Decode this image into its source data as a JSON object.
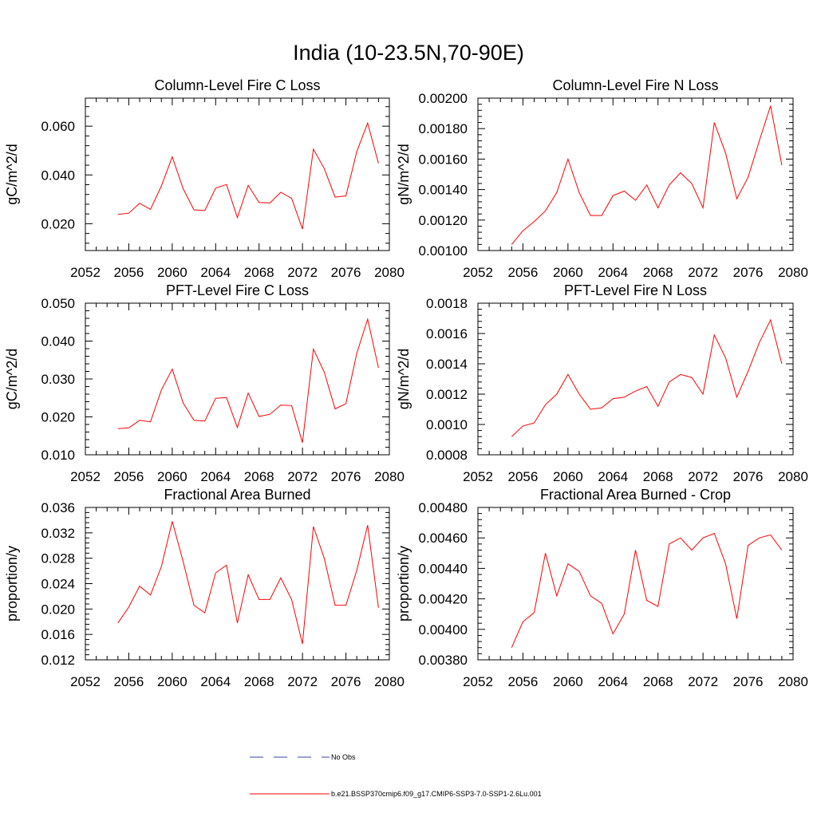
{
  "figure": {
    "title": "India (10-23.5N,70-90E)",
    "legend": [
      {
        "label": "No Obs",
        "color": "#3344aa",
        "style": "dashed"
      },
      {
        "label": "b.e21.BSSP370cmip6.f09_g17.CMIP6-SSP3-7.0-SSP1-2.6Lu.001",
        "color": "#ff0000",
        "style": "solid"
      }
    ]
  },
  "chart_data": [
    {
      "type": "line",
      "title": "Column-Level Fire C Loss",
      "ylabel": "gC/m^2/d",
      "xlim": [
        2052,
        2080
      ],
      "ylim": [
        0.009,
        0.0715
      ],
      "xticks": [
        2052,
        2056,
        2060,
        2064,
        2068,
        2072,
        2076,
        2080
      ],
      "yticks": [
        0.02,
        0.04,
        0.06
      ],
      "ytick_labels": [
        "0.020",
        "0.040",
        "0.060"
      ],
      "x": [
        2055,
        2056,
        2057,
        2058,
        2059,
        2060,
        2061,
        2062,
        2063,
        2064,
        2065,
        2066,
        2067,
        2068,
        2069,
        2070,
        2071,
        2072,
        2073,
        2074,
        2075,
        2076,
        2077,
        2078,
        2079
      ],
      "series": [
        {
          "color": "#ff0000",
          "values": [
            0.0238,
            0.0243,
            0.0284,
            0.0259,
            0.0355,
            0.0474,
            0.0344,
            0.0257,
            0.0254,
            0.0346,
            0.0361,
            0.0225,
            0.0357,
            0.0287,
            0.0285,
            0.0329,
            0.0304,
            0.0178,
            0.0506,
            0.0426,
            0.0309,
            0.0314,
            0.0496,
            0.0613,
            0.0447
          ]
        }
      ]
    },
    {
      "type": "line",
      "title": "Column-Level Fire N Loss",
      "ylabel": "gN/m^2/d",
      "xlim": [
        2052,
        2080
      ],
      "ylim": [
        0.001,
        0.002
      ],
      "xticks": [
        2052,
        2056,
        2060,
        2064,
        2068,
        2072,
        2076,
        2080
      ],
      "yticks": [
        0.001,
        0.0012,
        0.0014,
        0.0016,
        0.0018,
        0.002
      ],
      "ytick_labels": [
        "0.00100",
        "0.00120",
        "0.00140",
        "0.00160",
        "0.00180",
        "0.00200"
      ],
      "x": [
        2055,
        2056,
        2057,
        2058,
        2059,
        2060,
        2061,
        2062,
        2063,
        2064,
        2065,
        2066,
        2067,
        2068,
        2069,
        2070,
        2071,
        2072,
        2073,
        2074,
        2075,
        2076,
        2077,
        2078,
        2079
      ],
      "series": [
        {
          "color": "#ff0000",
          "values": [
            0.00104,
            0.00113,
            0.00119,
            0.00126,
            0.00138,
            0.0016,
            0.00138,
            0.00123,
            0.00123,
            0.00136,
            0.00139,
            0.00133,
            0.00143,
            0.00128,
            0.00143,
            0.00151,
            0.00144,
            0.00128,
            0.00184,
            0.00164,
            0.00134,
            0.00148,
            0.00172,
            0.00195,
            0.00156
          ]
        }
      ]
    },
    {
      "type": "line",
      "title": "PFT-Level Fire C Loss",
      "ylabel": "gC/m^2/d",
      "xlim": [
        2052,
        2080
      ],
      "ylim": [
        0.01,
        0.05
      ],
      "xticks": [
        2052,
        2056,
        2060,
        2064,
        2068,
        2072,
        2076,
        2080
      ],
      "yticks": [
        0.01,
        0.02,
        0.03,
        0.04,
        0.05
      ],
      "ytick_labels": [
        "0.010",
        "0.020",
        "0.030",
        "0.040",
        "0.050"
      ],
      "x": [
        2055,
        2056,
        2057,
        2058,
        2059,
        2060,
        2061,
        2062,
        2063,
        2064,
        2065,
        2066,
        2067,
        2068,
        2069,
        2070,
        2071,
        2072,
        2073,
        2074,
        2075,
        2076,
        2077,
        2078,
        2079
      ],
      "series": [
        {
          "color": "#ff0000",
          "values": [
            0.0169,
            0.0171,
            0.0191,
            0.0187,
            0.0271,
            0.0326,
            0.0237,
            0.0191,
            0.0189,
            0.0249,
            0.0251,
            0.0172,
            0.0263,
            0.0201,
            0.0207,
            0.0231,
            0.023,
            0.0132,
            0.0379,
            0.0318,
            0.0221,
            0.0235,
            0.0368,
            0.0458,
            0.0329
          ]
        }
      ]
    },
    {
      "type": "line",
      "title": "PFT-Level Fire N Loss",
      "ylabel": "gN/m^2/d",
      "xlim": [
        2052,
        2080
      ],
      "ylim": [
        0.0008,
        0.0018
      ],
      "xticks": [
        2052,
        2056,
        2060,
        2064,
        2068,
        2072,
        2076,
        2080
      ],
      "yticks": [
        0.0008,
        0.001,
        0.0012,
        0.0014,
        0.0016,
        0.0018
      ],
      "ytick_labels": [
        "0.0008",
        "0.0010",
        "0.0012",
        "0.0014",
        "0.0016",
        "0.0018"
      ],
      "x": [
        2055,
        2056,
        2057,
        2058,
        2059,
        2060,
        2061,
        2062,
        2063,
        2064,
        2065,
        2066,
        2067,
        2068,
        2069,
        2070,
        2071,
        2072,
        2073,
        2074,
        2075,
        2076,
        2077,
        2078,
        2079
      ],
      "series": [
        {
          "color": "#ff0000",
          "values": [
            0.00092,
            0.00099,
            0.00101,
            0.00113,
            0.0012,
            0.00133,
            0.0012,
            0.0011,
            0.00111,
            0.00117,
            0.00118,
            0.00122,
            0.00125,
            0.00112,
            0.00128,
            0.00133,
            0.00131,
            0.0012,
            0.00159,
            0.00144,
            0.00118,
            0.00135,
            0.00154,
            0.00169,
            0.0014
          ]
        }
      ]
    },
    {
      "type": "line",
      "title": "Fractional Area Burned",
      "ylabel": "proportion/y",
      "xlim": [
        2052,
        2080
      ],
      "ylim": [
        0.012,
        0.036
      ],
      "xticks": [
        2052,
        2056,
        2060,
        2064,
        2068,
        2072,
        2076,
        2080
      ],
      "yticks": [
        0.012,
        0.016,
        0.02,
        0.024,
        0.028,
        0.032,
        0.036
      ],
      "ytick_labels": [
        "0.012",
        "0.016",
        "0.020",
        "0.024",
        "0.028",
        "0.032",
        "0.036"
      ],
      "x": [
        2055,
        2056,
        2057,
        2058,
        2059,
        2060,
        2061,
        2062,
        2063,
        2064,
        2065,
        2066,
        2067,
        2068,
        2069,
        2070,
        2071,
        2072,
        2073,
        2074,
        2075,
        2076,
        2077,
        2078,
        2079
      ],
      "series": [
        {
          "color": "#ff0000",
          "values": [
            0.0178,
            0.0203,
            0.0236,
            0.0222,
            0.0267,
            0.0338,
            0.0275,
            0.0206,
            0.0194,
            0.0257,
            0.0269,
            0.0178,
            0.0254,
            0.0215,
            0.0215,
            0.0249,
            0.0215,
            0.0145,
            0.033,
            0.028,
            0.0206,
            0.0206,
            0.0261,
            0.0332,
            0.0202
          ]
        }
      ]
    },
    {
      "type": "line",
      "title": "Fractional Area Burned - Crop",
      "ylabel": "proportion/y",
      "xlim": [
        2052,
        2080
      ],
      "ylim": [
        0.0038,
        0.0048
      ],
      "xticks": [
        2052,
        2056,
        2060,
        2064,
        2068,
        2072,
        2076,
        2080
      ],
      "yticks": [
        0.0038,
        0.004,
        0.0042,
        0.0044,
        0.0046,
        0.0048
      ],
      "ytick_labels": [
        "0.00380",
        "0.00400",
        "0.00420",
        "0.00440",
        "0.00460",
        "0.00480"
      ],
      "x": [
        2055,
        2056,
        2057,
        2058,
        2059,
        2060,
        2061,
        2062,
        2063,
        2064,
        2065,
        2066,
        2067,
        2068,
        2069,
        2070,
        2071,
        2072,
        2073,
        2074,
        2075,
        2076,
        2077,
        2078,
        2079
      ],
      "series": [
        {
          "color": "#ff0000",
          "values": [
            0.00388,
            0.00405,
            0.00411,
            0.0045,
            0.00422,
            0.00443,
            0.00438,
            0.00422,
            0.00417,
            0.00397,
            0.0041,
            0.00452,
            0.00419,
            0.00415,
            0.00456,
            0.0046,
            0.00452,
            0.0046,
            0.00463,
            0.00443,
            0.00407,
            0.00455,
            0.0046,
            0.00462,
            0.00452
          ]
        }
      ]
    }
  ]
}
